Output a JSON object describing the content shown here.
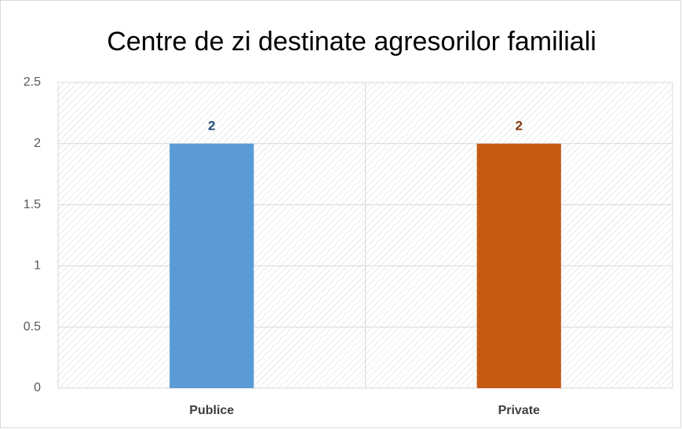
{
  "chart_data": {
    "type": "bar",
    "title": "Centre de zi destinate agresorilor familiali",
    "categories": [
      "Publice",
      "Private"
    ],
    "values": [
      2,
      2
    ],
    "colors": [
      "#5b9bd5",
      "#c55a11"
    ],
    "label_colors": [
      "#1f4e79",
      "#843c0c"
    ],
    "ylim": [
      0,
      2.5
    ],
    "yticks": [
      0,
      0.5,
      1,
      1.5,
      2,
      2.5
    ],
    "grid": true
  }
}
